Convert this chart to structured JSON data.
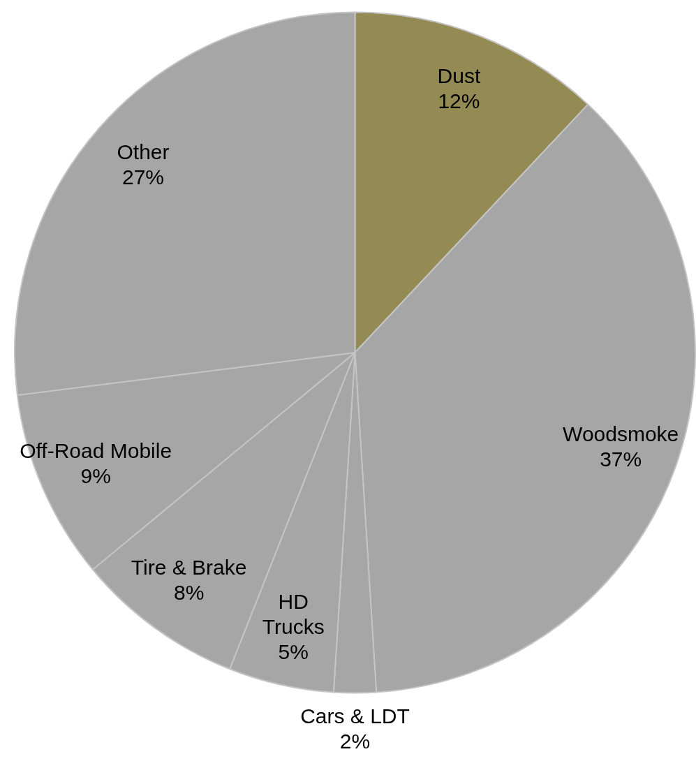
{
  "chart_data": {
    "type": "pie",
    "categories": [
      "Dust",
      "Woodsmoke",
      "Cars & LDT",
      "HD Trucks",
      "Tire & Brake",
      "Off-Road Mobile",
      "Other"
    ],
    "values": [
      12,
      37,
      2,
      5,
      8,
      9,
      27
    ],
    "value_labels": [
      "12%",
      "37%",
      "2%",
      "5%",
      "8%",
      "9%",
      "27%"
    ],
    "colors": [
      "#948a54",
      "#a6a6a6",
      "#a6a6a6",
      "#a6a6a6",
      "#a6a6a6",
      "#a6a6a6",
      "#a6a6a6"
    ],
    "legend": false
  }
}
